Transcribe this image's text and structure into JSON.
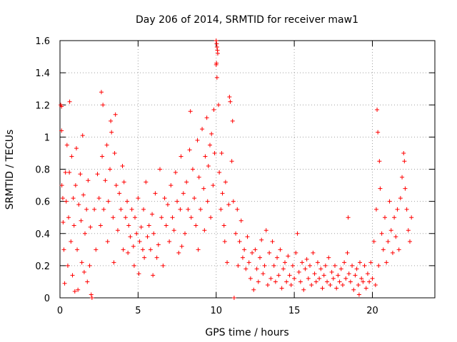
{
  "chart_data": {
    "type": "scatter",
    "title": "Day 206 of 2014, SRMTID for receiver maw1",
    "xlabel": "GPS time / hours",
    "ylabel": "SRMTID / TECUs",
    "xlim": [
      0,
      24
    ],
    "ylim": [
      0,
      1.6
    ],
    "x_ticks": [
      0,
      5,
      10,
      15,
      20
    ],
    "x_tick_labels": [
      "0",
      "5",
      "10",
      "15",
      "20"
    ],
    "y_ticks": [
      0,
      0.2,
      0.4,
      0.6,
      0.8,
      1.0,
      1.2,
      1.4,
      1.6
    ],
    "y_tick_labels": [
      "0",
      "0.2",
      "0.4",
      "0.6",
      "0.8",
      "1",
      "1.2",
      "1.4",
      "1.6"
    ],
    "grid": true,
    "marker": "+",
    "color": "#ff0000",
    "series": [
      {
        "name": "maw1",
        "points": [
          [
            0.05,
            1.2
          ],
          [
            0.1,
            1.19
          ],
          [
            0.1,
            1.04
          ],
          [
            0.12,
            0.7
          ],
          [
            0.18,
            0.62
          ],
          [
            0.2,
            0.47
          ],
          [
            0.25,
            0.3
          ],
          [
            0.3,
            0.09
          ],
          [
            0.35,
            0.78
          ],
          [
            0.4,
            0.6
          ],
          [
            0.45,
            0.95
          ],
          [
            0.5,
            0.2
          ],
          [
            0.55,
            0.5
          ],
          [
            0.6,
            0.78
          ],
          [
            0.62,
            1.22
          ],
          [
            0.7,
            0.35
          ],
          [
            0.75,
            0.88
          ],
          [
            0.8,
            0.14
          ],
          [
            0.85,
            0.62
          ],
          [
            0.9,
            0.45
          ],
          [
            0.95,
            0.04
          ],
          [
            1.0,
            0.7
          ],
          [
            1.05,
            0.93
          ],
          [
            1.1,
            0.3
          ],
          [
            1.15,
            0.05
          ],
          [
            1.2,
            0.58
          ],
          [
            1.3,
            0.77
          ],
          [
            1.35,
            0.48
          ],
          [
            1.4,
            0.22
          ],
          [
            1.45,
            1.01
          ],
          [
            1.5,
            0.64
          ],
          [
            1.55,
            0.16
          ],
          [
            1.6,
            0.4
          ],
          [
            1.7,
            0.55
          ],
          [
            1.75,
            0.1
          ],
          [
            1.8,
            0.73
          ],
          [
            1.9,
            0.2
          ],
          [
            1.95,
            0.44
          ],
          [
            2.0,
            0.02
          ],
          [
            2.05,
            0.0
          ],
          [
            2.2,
            0.55
          ],
          [
            2.3,
            0.3
          ],
          [
            2.4,
            0.77
          ],
          [
            2.5,
            0.62
          ],
          [
            2.6,
            0.45
          ],
          [
            2.65,
            1.28
          ],
          [
            2.7,
            0.88
          ],
          [
            2.75,
            1.2
          ],
          [
            2.8,
            0.55
          ],
          [
            2.9,
            0.73
          ],
          [
            3.0,
            0.95
          ],
          [
            3.05,
            0.35
          ],
          [
            3.1,
            0.6
          ],
          [
            3.2,
            0.8
          ],
          [
            3.25,
            1.1
          ],
          [
            3.3,
            1.03
          ],
          [
            3.4,
            0.5
          ],
          [
            3.45,
            0.22
          ],
          [
            3.5,
            0.9
          ],
          [
            3.55,
            1.14
          ],
          [
            3.6,
            0.7
          ],
          [
            3.7,
            0.42
          ],
          [
            3.8,
            0.65
          ],
          [
            3.9,
            0.55
          ],
          [
            4.0,
            0.82
          ],
          [
            4.05,
            0.3
          ],
          [
            4.1,
            0.72
          ],
          [
            4.2,
            0.5
          ],
          [
            4.3,
            0.6
          ],
          [
            4.35,
            0.28
          ],
          [
            4.4,
            0.45
          ],
          [
            4.5,
            0.38
          ],
          [
            4.6,
            0.55
          ],
          [
            4.7,
            0.32
          ],
          [
            4.75,
            0.2
          ],
          [
            4.8,
            0.5
          ],
          [
            4.9,
            0.4
          ],
          [
            5.0,
            0.62
          ],
          [
            5.05,
            0.15
          ],
          [
            5.1,
            0.35
          ],
          [
            5.2,
            0.44
          ],
          [
            5.3,
            0.3
          ],
          [
            5.35,
            0.55
          ],
          [
            5.4,
            0.25
          ],
          [
            5.5,
            0.72
          ],
          [
            5.6,
            0.38
          ],
          [
            5.7,
            0.45
          ],
          [
            5.8,
            0.3
          ],
          [
            5.9,
            0.52
          ],
          [
            5.95,
            0.14
          ],
          [
            6.0,
            0.4
          ],
          [
            6.1,
            0.65
          ],
          [
            6.2,
            0.25
          ],
          [
            6.3,
            0.33
          ],
          [
            6.4,
            0.8
          ],
          [
            6.5,
            0.5
          ],
          [
            6.6,
            0.2
          ],
          [
            6.7,
            0.62
          ],
          [
            6.8,
            0.45
          ],
          [
            6.9,
            0.58
          ],
          [
            7.0,
            0.35
          ],
          [
            7.1,
            0.7
          ],
          [
            7.2,
            0.5
          ],
          [
            7.3,
            0.42
          ],
          [
            7.4,
            0.78
          ],
          [
            7.5,
            0.6
          ],
          [
            7.6,
            0.28
          ],
          [
            7.7,
            0.55
          ],
          [
            7.75,
            0.88
          ],
          [
            7.8,
            0.32
          ],
          [
            7.9,
            0.65
          ],
          [
            8.0,
            0.4
          ],
          [
            8.1,
            0.72
          ],
          [
            8.2,
            0.55
          ],
          [
            8.3,
            0.92
          ],
          [
            8.35,
            1.16
          ],
          [
            8.4,
            0.5
          ],
          [
            8.5,
            0.8
          ],
          [
            8.6,
            0.62
          ],
          [
            8.7,
            0.45
          ],
          [
            8.8,
            0.98
          ],
          [
            8.85,
            0.3
          ],
          [
            8.9,
            0.75
          ],
          [
            9.0,
            0.55
          ],
          [
            9.1,
            1.05
          ],
          [
            9.2,
            0.68
          ],
          [
            9.25,
            0.42
          ],
          [
            9.3,
            0.88
          ],
          [
            9.4,
            1.12
          ],
          [
            9.45,
            0.6
          ],
          [
            9.5,
            0.82
          ],
          [
            9.6,
            0.95
          ],
          [
            9.65,
            0.5
          ],
          [
            9.7,
            1.02
          ],
          [
            9.8,
            0.7
          ],
          [
            9.85,
            1.17
          ],
          [
            9.9,
            0.9
          ],
          [
            10.0,
            1.6
          ],
          [
            10.03,
            1.58
          ],
          [
            10.05,
            1.56
          ],
          [
            10.08,
            1.54
          ],
          [
            10.1,
            1.52
          ],
          [
            10.0,
            1.45
          ],
          [
            10.05,
            1.37
          ],
          [
            10.02,
            1.46
          ],
          [
            10.15,
            1.2
          ],
          [
            10.2,
            0.78
          ],
          [
            10.3,
            0.55
          ],
          [
            10.35,
            0.9
          ],
          [
            10.4,
            0.65
          ],
          [
            10.5,
            0.45
          ],
          [
            10.55,
            0.35
          ],
          [
            10.6,
            0.72
          ],
          [
            10.7,
            0.22
          ],
          [
            10.8,
            0.58
          ],
          [
            10.85,
            1.25
          ],
          [
            10.9,
            1.22
          ],
          [
            11.0,
            0.85
          ],
          [
            11.05,
            1.1
          ],
          [
            11.1,
            0.6
          ],
          [
            11.15,
            0.0
          ],
          [
            11.25,
            0.4
          ],
          [
            11.35,
            0.55
          ],
          [
            11.4,
            0.2
          ],
          [
            11.5,
            0.35
          ],
          [
            11.6,
            0.48
          ],
          [
            11.7,
            0.25
          ],
          [
            11.8,
            0.3
          ],
          [
            11.9,
            0.18
          ],
          [
            12.0,
            0.38
          ],
          [
            12.1,
            0.22
          ],
          [
            12.2,
            0.12
          ],
          [
            12.3,
            0.28
          ],
          [
            12.4,
            0.05
          ],
          [
            12.5,
            0.3
          ],
          [
            12.6,
            0.18
          ],
          [
            12.7,
            0.1
          ],
          [
            12.8,
            0.25
          ],
          [
            12.9,
            0.36
          ],
          [
            13.0,
            0.15
          ],
          [
            13.1,
            0.2
          ],
          [
            13.2,
            0.42
          ],
          [
            13.3,
            0.08
          ],
          [
            13.4,
            0.28
          ],
          [
            13.5,
            0.12
          ],
          [
            13.6,
            0.35
          ],
          [
            13.7,
            0.2
          ],
          [
            13.8,
            0.1
          ],
          [
            13.9,
            0.25
          ],
          [
            14.0,
            0.14
          ],
          [
            14.1,
            0.3
          ],
          [
            14.2,
            0.06
          ],
          [
            14.3,
            0.18
          ],
          [
            14.4,
            0.22
          ],
          [
            14.5,
            0.1
          ],
          [
            14.6,
            0.26
          ],
          [
            14.7,
            0.14
          ],
          [
            14.8,
            0.08
          ],
          [
            14.9,
            0.2
          ],
          [
            15.0,
            0.12
          ],
          [
            15.1,
            0.28
          ],
          [
            15.2,
            0.4
          ],
          [
            15.3,
            0.16
          ],
          [
            15.4,
            0.1
          ],
          [
            15.5,
            0.22
          ],
          [
            15.6,
            0.05
          ],
          [
            15.7,
            0.18
          ],
          [
            15.8,
            0.24
          ],
          [
            15.9,
            0.12
          ],
          [
            16.0,
            0.2
          ],
          [
            16.1,
            0.08
          ],
          [
            16.2,
            0.28
          ],
          [
            16.3,
            0.15
          ],
          [
            16.4,
            0.1
          ],
          [
            16.5,
            0.22
          ],
          [
            16.6,
            0.12
          ],
          [
            16.7,
            0.18
          ],
          [
            16.8,
            0.06
          ],
          [
            16.9,
            0.14
          ],
          [
            17.0,
            0.2
          ],
          [
            17.1,
            0.1
          ],
          [
            17.2,
            0.25
          ],
          [
            17.3,
            0.08
          ],
          [
            17.4,
            0.16
          ],
          [
            17.5,
            0.12
          ],
          [
            17.6,
            0.2
          ],
          [
            17.7,
            0.06
          ],
          [
            17.8,
            0.14
          ],
          [
            17.9,
            0.1
          ],
          [
            18.0,
            0.18
          ],
          [
            18.1,
            0.08
          ],
          [
            18.2,
            0.22
          ],
          [
            18.3,
            0.12
          ],
          [
            18.4,
            0.28
          ],
          [
            18.45,
            0.5
          ],
          [
            18.5,
            0.15
          ],
          [
            18.6,
            0.1
          ],
          [
            18.7,
            0.2
          ],
          [
            18.8,
            0.05
          ],
          [
            18.9,
            0.14
          ],
          [
            19.0,
            0.18
          ],
          [
            19.1,
            0.08
          ],
          [
            19.15,
            0.02
          ],
          [
            19.2,
            0.22
          ],
          [
            19.3,
            0.12
          ],
          [
            19.4,
            0.1
          ],
          [
            19.5,
            0.2
          ],
          [
            19.6,
            0.06
          ],
          [
            19.7,
            0.15
          ],
          [
            19.8,
            0.1
          ],
          [
            19.9,
            0.22
          ],
          [
            20.0,
            0.12
          ],
          [
            20.1,
            0.35
          ],
          [
            20.2,
            0.08
          ],
          [
            20.25,
            0.55
          ],
          [
            20.3,
            1.17
          ],
          [
            20.35,
            1.03
          ],
          [
            20.4,
            0.2
          ],
          [
            20.45,
            0.85
          ],
          [
            20.5,
            0.68
          ],
          [
            20.6,
            0.4
          ],
          [
            20.7,
            0.3
          ],
          [
            20.8,
            0.5
          ],
          [
            20.9,
            0.22
          ],
          [
            21.0,
            0.35
          ],
          [
            21.1,
            0.6
          ],
          [
            21.2,
            0.42
          ],
          [
            21.3,
            0.28
          ],
          [
            21.4,
            0.5
          ],
          [
            21.5,
            0.38
          ],
          [
            21.6,
            0.55
          ],
          [
            21.7,
            0.3
          ],
          [
            21.8,
            0.62
          ],
          [
            21.9,
            0.75
          ],
          [
            22.0,
            0.9
          ],
          [
            22.05,
            0.85
          ],
          [
            22.1,
            0.68
          ],
          [
            22.2,
            0.55
          ],
          [
            22.3,
            0.42
          ],
          [
            22.4,
            0.35
          ],
          [
            22.5,
            0.5
          ]
        ]
      }
    ]
  }
}
